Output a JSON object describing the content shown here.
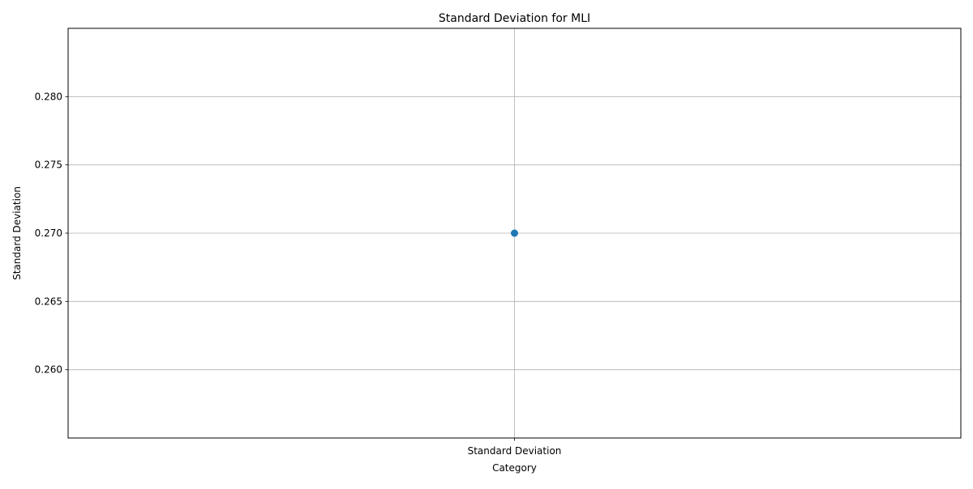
{
  "chart_data": {
    "type": "scatter",
    "title": "Standard Deviation for MLI",
    "xlabel": "Category",
    "ylabel": "Standard Deviation",
    "categories": [
      "Standard Deviation"
    ],
    "values": [
      0.27
    ],
    "ylim": [
      0.255,
      0.285
    ],
    "yticks": [
      0.26,
      0.265,
      0.27,
      0.275,
      0.28
    ],
    "ytick_labels": [
      "0.260",
      "0.265",
      "0.270",
      "0.275",
      "0.280"
    ],
    "grid": true,
    "marker_color": "#1f77b4",
    "grid_color": "#b0b0b0"
  }
}
